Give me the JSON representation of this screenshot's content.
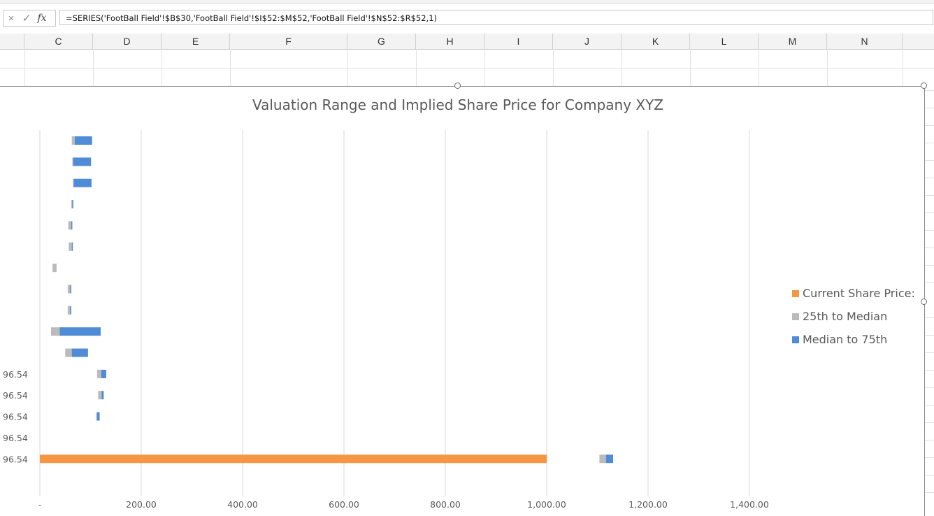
{
  "formula_bar": {
    "cancel_icon": "×",
    "confirm_icon": "✓",
    "fx_label": "fx",
    "formula": "=SERIES('FootBall Field'!$B$30,'FootBall Field'!$I$52:$M$52,'FootBall Field'!$N$52:$R$52,1)"
  },
  "columns": [
    "C",
    "D",
    "E",
    "F",
    "G",
    "H",
    "I",
    "J",
    "K",
    "L",
    "M",
    "N"
  ],
  "chart_data": {
    "type": "bar",
    "orientation": "horizontal",
    "stacked": true,
    "title": "Valuation Range and Implied Share Price for Company XYZ",
    "xlim": [
      0,
      1500
    ],
    "x_tick_labels": [
      "-",
      "200.00",
      "400.00",
      "600.00",
      "800.00",
      "1,000.00",
      "1,200.00",
      "1,400.00"
    ],
    "x_tick_values": [
      0,
      200,
      400,
      600,
      800,
      1000,
      1200,
      1400
    ],
    "row_labels": [
      "",
      "",
      "",
      "",
      "",
      "",
      "",
      "",
      "",
      "",
      "",
      "96.54",
      "96.54",
      "96.54",
      "96.54",
      "96.54"
    ],
    "grid": "vertical",
    "legend_position": "right",
    "series": [
      {
        "name": "Current Share Price:",
        "color": "#F59645",
        "values": [
          0,
          0,
          0,
          0,
          0,
          0,
          0,
          0,
          0,
          0,
          0,
          0,
          0,
          0,
          0,
          1000
        ]
      },
      {
        "name": "25th to Median",
        "color": "#BBBBBB",
        "values": [
          null,
          null,
          null,
          null,
          null,
          null,
          null,
          null,
          null,
          null,
          null,
          null,
          null,
          null,
          null,
          null
        ],
        "ranges": [
          [
            63,
            69
          ],
          [
            64,
            66
          ],
          [
            65,
            67
          ],
          [
            62,
            64
          ],
          [
            56,
            62
          ],
          [
            57,
            63
          ],
          [
            25,
            33
          ],
          [
            55,
            60
          ],
          [
            55,
            60
          ],
          [
            22,
            39
          ],
          [
            50,
            63
          ],
          [
            113,
            121
          ],
          [
            115,
            122
          ],
          [
            111,
            113
          ],
          null,
          [
            1104,
            1117
          ]
        ]
      },
      {
        "name": "Median to 75th",
        "color": "#4F8BD6",
        "values": [
          null,
          null,
          null,
          null,
          null,
          null,
          null,
          null,
          null,
          null,
          null,
          null,
          null,
          null,
          null,
          null
        ],
        "ranges": [
          [
            69,
            103
          ],
          [
            66,
            101
          ],
          [
            67,
            102
          ],
          [
            64,
            66
          ],
          [
            62,
            63
          ],
          [
            63,
            64
          ],
          null,
          [
            60,
            61
          ],
          [
            60,
            61
          ],
          [
            39,
            120
          ],
          [
            63,
            95
          ],
          [
            121,
            131
          ],
          [
            122,
            126
          ],
          [
            113,
            118
          ],
          null,
          [
            1117,
            1131
          ]
        ]
      }
    ]
  }
}
